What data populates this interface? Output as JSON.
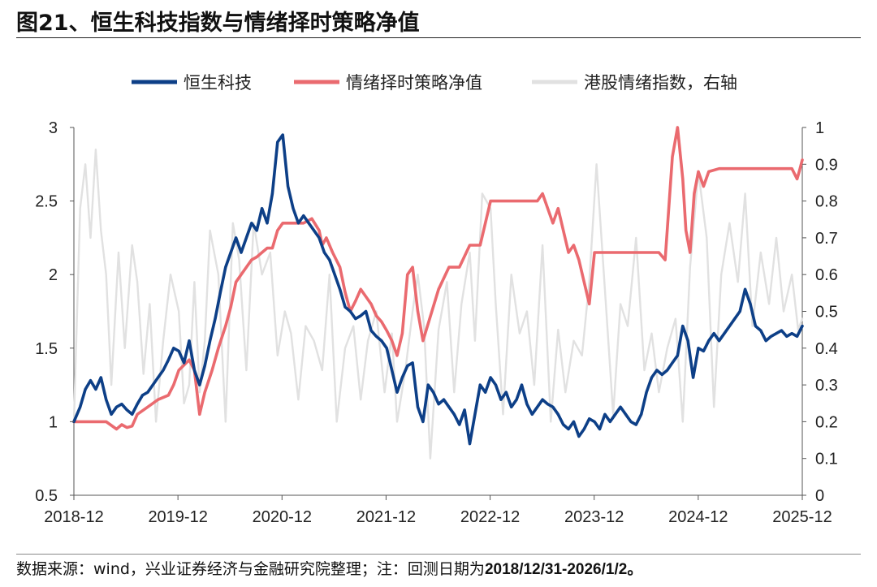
{
  "figure": {
    "title": "图21、恒生科技指数与情绪择时策略净值",
    "source_prefix": "数据来源：wind，兴业证券经济与金融研究院整理；注：回测日期为",
    "source_dates": "2018/12/31-2026/1/2。"
  },
  "chart_data": {
    "type": "line",
    "title": "图21、恒生科技指数与情绪择时策略净值",
    "x_tick_labels": [
      "2018-12",
      "2019-12",
      "2020-12",
      "2021-12",
      "2022-12",
      "2023-12",
      "2024-12",
      "2025-12"
    ],
    "left_axis": {
      "ylim": [
        0.5,
        3
      ],
      "ticks": [
        "0.5",
        "1",
        "1.5",
        "2",
        "2.5",
        "3"
      ],
      "tick_values": [
        0.5,
        1,
        1.5,
        2,
        2.5,
        3
      ]
    },
    "right_axis": {
      "ylim": [
        0,
        1
      ],
      "ticks": [
        "0",
        "0.1",
        "0.2",
        "0.3",
        "0.4",
        "0.5",
        "0.6",
        "0.7",
        "0.8",
        "0.9",
        "1"
      ],
      "tick_values": [
        0,
        0.1,
        0.2,
        0.3,
        0.4,
        0.5,
        0.6,
        0.7,
        0.8,
        0.9,
        1
      ]
    },
    "legend_position": "top",
    "series": [
      {
        "name": "港股情绪指数，右轴",
        "axis": "right",
        "color": "#e1e1e1",
        "x": [
          2018.99,
          2019.05,
          2019.1,
          2019.15,
          2019.2,
          2019.25,
          2019.3,
          2019.35,
          2019.42,
          2019.48,
          2019.55,
          2019.6,
          2019.66,
          2019.72,
          2019.78,
          2019.85,
          2019.92,
          2020.0,
          2020.05,
          2020.1,
          2020.15,
          2020.2,
          2020.25,
          2020.3,
          2020.38,
          2020.45,
          2020.52,
          2020.58,
          2020.65,
          2020.72,
          2020.8,
          2020.88,
          2020.95,
          2021.02,
          2021.08,
          2021.15,
          2021.22,
          2021.3,
          2021.38,
          2021.45,
          2021.52,
          2021.6,
          2021.68,
          2021.75,
          2021.82,
          2021.9,
          2021.98,
          2022.05,
          2022.1,
          2022.18,
          2022.25,
          2022.3,
          2022.36,
          2022.42,
          2022.5,
          2022.58,
          2022.65,
          2022.72,
          2022.8,
          2022.85,
          2022.92,
          2023.0,
          2023.05,
          2023.12,
          2023.2,
          2023.28,
          2023.35,
          2023.42,
          2023.5,
          2023.58,
          2023.65,
          2023.72,
          2023.8,
          2023.88,
          2023.95,
          2024.02,
          2024.1,
          2024.18,
          2024.25,
          2024.32,
          2024.4,
          2024.48,
          2024.55,
          2024.62,
          2024.7,
          2024.78,
          2024.85,
          2024.92,
          2025.0,
          2025.08,
          2025.15,
          2025.22,
          2025.3,
          2025.38,
          2025.45,
          2025.52,
          2025.6,
          2025.68,
          2025.75,
          2025.82,
          2025.9,
          2025.96,
          2026.0
        ],
        "values": [
          0.2,
          0.78,
          0.9,
          0.7,
          0.94,
          0.72,
          0.6,
          0.3,
          0.66,
          0.4,
          0.68,
          0.58,
          0.33,
          0.52,
          0.2,
          0.42,
          0.6,
          0.5,
          0.25,
          0.3,
          0.58,
          0.28,
          0.42,
          0.72,
          0.6,
          0.2,
          0.74,
          0.64,
          0.34,
          0.74,
          0.6,
          0.66,
          0.38,
          0.5,
          0.44,
          0.26,
          0.46,
          0.42,
          0.34,
          0.6,
          0.2,
          0.4,
          0.46,
          0.26,
          0.42,
          0.5,
          0.28,
          0.44,
          0.2,
          0.34,
          0.5,
          0.6,
          0.46,
          0.1,
          0.45,
          0.58,
          0.28,
          0.52,
          0.66,
          0.42,
          0.82,
          0.78,
          0.52,
          0.22,
          0.6,
          0.44,
          0.5,
          0.3,
          0.68,
          0.2,
          0.45,
          0.28,
          0.42,
          0.38,
          0.58,
          0.9,
          0.56,
          0.22,
          0.52,
          0.46,
          0.7,
          0.34,
          0.44,
          0.28,
          0.4,
          0.48,
          0.2,
          0.62,
          0.88,
          0.7,
          0.24,
          0.6,
          0.74,
          0.58,
          0.82,
          0.46,
          0.66,
          0.52,
          0.7,
          0.5,
          0.6,
          0.45,
          0.48
        ]
      },
      {
        "name": "情绪择时策略净值",
        "axis": "left",
        "color": "#ea6a6f",
        "x": [
          2018.99,
          2019.15,
          2019.3,
          2019.4,
          2019.45,
          2019.5,
          2019.55,
          2019.6,
          2019.7,
          2019.8,
          2019.9,
          2019.95,
          2020.0,
          2020.1,
          2020.15,
          2020.2,
          2020.25,
          2020.32,
          2020.38,
          2020.45,
          2020.5,
          2020.55,
          2020.6,
          2020.65,
          2020.7,
          2020.75,
          2020.8,
          2020.85,
          2020.9,
          2020.95,
          2021.0,
          2021.1,
          2021.2,
          2021.28,
          2021.35,
          2021.38,
          2021.42,
          2021.48,
          2021.55,
          2021.6,
          2021.65,
          2021.7,
          2021.75,
          2021.8,
          2021.85,
          2021.9,
          2021.95,
          2022.0,
          2022.05,
          2022.1,
          2022.15,
          2022.2,
          2022.25,
          2022.3,
          2022.35,
          2022.5,
          2022.6,
          2022.7,
          2022.8,
          2022.9,
          2023.0,
          2023.1,
          2023.2,
          2023.3,
          2023.4,
          2023.45,
          2023.5,
          2023.55,
          2023.6,
          2023.65,
          2023.7,
          2023.75,
          2023.8,
          2023.85,
          2023.9,
          2023.95,
          2024.0,
          2024.5,
          2024.6,
          2024.62,
          2024.68,
          2024.72,
          2024.75,
          2024.8,
          2024.85,
          2024.88,
          2024.92,
          2024.96,
          2025.0,
          2025.05,
          2025.1,
          2025.2,
          2025.3,
          2025.4,
          2025.45,
          2025.5,
          2025.55,
          2025.6,
          2025.7,
          2025.8,
          2025.9,
          2025.95,
          2025.97,
          2026.0
        ],
        "values": [
          1.0,
          1.0,
          1.0,
          0.95,
          0.98,
          0.96,
          0.97,
          1.05,
          1.1,
          1.15,
          1.18,
          1.25,
          1.35,
          1.42,
          1.35,
          1.05,
          1.2,
          1.35,
          1.5,
          1.65,
          1.78,
          1.95,
          2.0,
          2.05,
          2.1,
          2.12,
          2.15,
          2.18,
          2.18,
          2.3,
          2.35,
          2.35,
          2.35,
          2.38,
          2.3,
          2.2,
          2.25,
          2.15,
          2.05,
          1.88,
          1.75,
          1.82,
          1.9,
          1.85,
          1.8,
          1.72,
          1.68,
          1.62,
          1.55,
          1.45,
          1.6,
          2.0,
          2.05,
          1.75,
          1.55,
          1.9,
          2.05,
          2.05,
          2.2,
          2.2,
          2.5,
          2.5,
          2.5,
          2.5,
          2.5,
          2.5,
          2.55,
          2.45,
          2.35,
          2.45,
          2.3,
          2.15,
          2.2,
          2.1,
          1.95,
          1.8,
          2.15,
          2.15,
          2.15,
          2.15,
          2.1,
          2.5,
          2.8,
          3.0,
          2.65,
          2.3,
          2.15,
          2.55,
          2.7,
          2.6,
          2.7,
          2.72,
          2.72,
          2.72,
          2.72,
          2.72,
          2.72,
          2.72,
          2.72,
          2.72,
          2.72,
          2.65,
          2.7,
          2.78
        ]
      },
      {
        "name": "恒生科技",
        "axis": "left",
        "color": "#0d3f87",
        "x": [
          2018.99,
          2019.05,
          2019.1,
          2019.15,
          2019.2,
          2019.25,
          2019.3,
          2019.35,
          2019.4,
          2019.45,
          2019.5,
          2019.55,
          2019.6,
          2019.65,
          2019.7,
          2019.75,
          2019.8,
          2019.85,
          2019.9,
          2019.95,
          2020.0,
          2020.05,
          2020.1,
          2020.15,
          2020.2,
          2020.25,
          2020.3,
          2020.35,
          2020.4,
          2020.45,
          2020.5,
          2020.55,
          2020.6,
          2020.65,
          2020.7,
          2020.75,
          2020.8,
          2020.85,
          2020.9,
          2020.95,
          2021.0,
          2021.05,
          2021.1,
          2021.15,
          2021.2,
          2021.25,
          2021.3,
          2021.35,
          2021.4,
          2021.45,
          2021.5,
          2021.55,
          2021.6,
          2021.65,
          2021.7,
          2021.75,
          2021.8,
          2021.85,
          2021.9,
          2021.95,
          2022.0,
          2022.05,
          2022.1,
          2022.15,
          2022.2,
          2022.25,
          2022.3,
          2022.35,
          2022.4,
          2022.45,
          2022.5,
          2022.55,
          2022.6,
          2022.65,
          2022.7,
          2022.75,
          2022.8,
          2022.85,
          2022.9,
          2022.95,
          2023.0,
          2023.05,
          2023.1,
          2023.15,
          2023.2,
          2023.25,
          2023.3,
          2023.35,
          2023.4,
          2023.45,
          2023.5,
          2023.55,
          2023.6,
          2023.65,
          2023.7,
          2023.75,
          2023.8,
          2023.85,
          2023.9,
          2023.95,
          2024.0,
          2024.05,
          2024.1,
          2024.15,
          2024.2,
          2024.25,
          2024.3,
          2024.35,
          2024.4,
          2024.45,
          2024.5,
          2024.55,
          2024.6,
          2024.65,
          2024.7,
          2024.75,
          2024.8,
          2024.85,
          2024.9,
          2024.95,
          2025.0,
          2025.05,
          2025.1,
          2025.15,
          2025.2,
          2025.25,
          2025.3,
          2025.35,
          2025.4,
          2025.45,
          2025.5,
          2025.55,
          2025.6,
          2025.65,
          2025.7,
          2025.75,
          2025.8,
          2025.85,
          2025.9,
          2025.95,
          2026.0
        ],
        "values": [
          1.0,
          1.1,
          1.22,
          1.28,
          1.22,
          1.3,
          1.15,
          1.05,
          1.1,
          1.12,
          1.08,
          1.05,
          1.12,
          1.18,
          1.2,
          1.25,
          1.3,
          1.35,
          1.42,
          1.5,
          1.48,
          1.4,
          1.55,
          1.35,
          1.25,
          1.38,
          1.55,
          1.7,
          1.88,
          2.05,
          2.15,
          2.25,
          2.15,
          2.25,
          2.35,
          2.3,
          2.45,
          2.35,
          2.55,
          2.9,
          2.95,
          2.6,
          2.45,
          2.35,
          2.4,
          2.35,
          2.3,
          2.25,
          2.15,
          2.1,
          2.0,
          1.9,
          1.78,
          1.75,
          1.7,
          1.72,
          1.75,
          1.62,
          1.58,
          1.55,
          1.5,
          1.35,
          1.2,
          1.3,
          1.38,
          1.4,
          1.1,
          1.0,
          1.25,
          1.2,
          1.12,
          1.15,
          1.1,
          1.05,
          0.98,
          1.08,
          0.85,
          1.05,
          1.25,
          1.2,
          1.3,
          1.25,
          1.15,
          1.2,
          1.1,
          1.15,
          1.25,
          1.12,
          1.05,
          1.1,
          1.15,
          1.12,
          1.1,
          1.05,
          0.98,
          0.95,
          1.0,
          0.9,
          0.95,
          1.02,
          1.0,
          0.95,
          1.05,
          1.0,
          1.05,
          1.1,
          1.05,
          1.0,
          0.98,
          1.05,
          1.2,
          1.3,
          1.35,
          1.32,
          1.35,
          1.4,
          1.45,
          1.65,
          1.55,
          1.3,
          1.5,
          1.48,
          1.55,
          1.6,
          1.55,
          1.6,
          1.65,
          1.7,
          1.75,
          1.9,
          1.8,
          1.65,
          1.62,
          1.55,
          1.58,
          1.6,
          1.62,
          1.58,
          1.6,
          1.58,
          1.65
        ]
      }
    ]
  }
}
